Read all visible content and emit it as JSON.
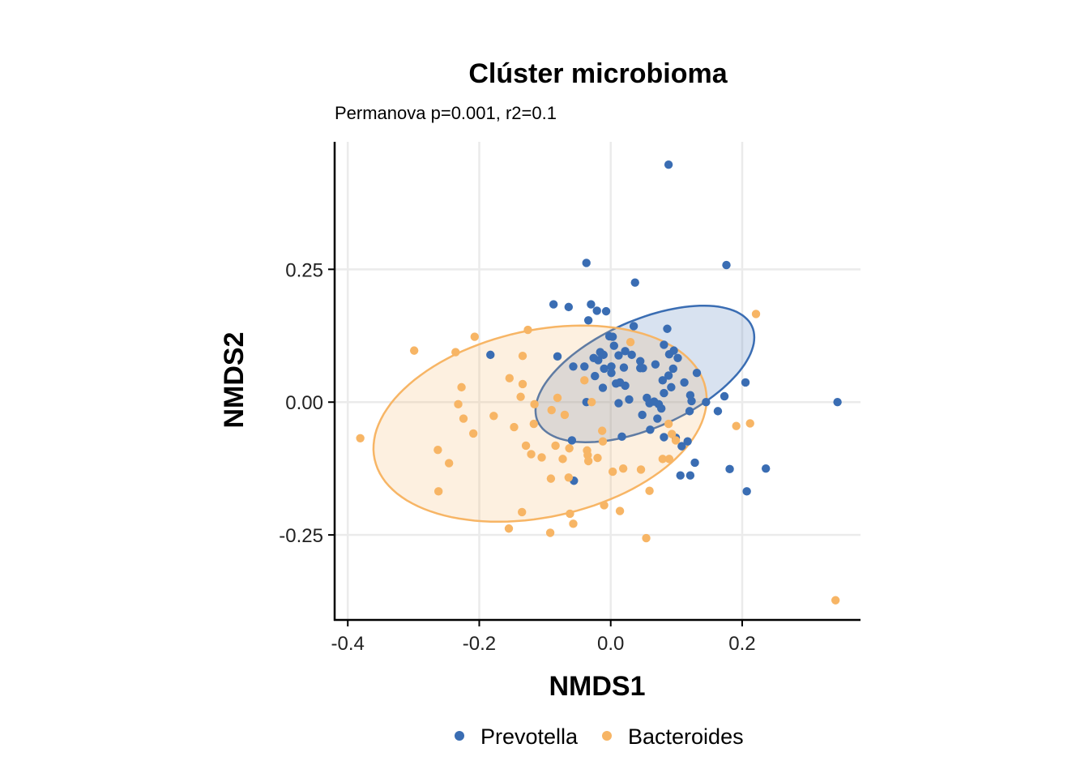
{
  "chart_data": {
    "type": "scatter",
    "title": "Clúster microbioma",
    "subtitle": "Permanova p=0.001, r2=0.1",
    "xlabel": "NMDS1",
    "ylabel": "NMDS2",
    "xlim": [
      -0.42,
      0.38
    ],
    "ylim": [
      -0.41,
      0.49
    ],
    "xticks": [
      -0.4,
      -0.2,
      0.0,
      0.2
    ],
    "xtick_labels": [
      "-0.4",
      "-0.2",
      "0.0",
      "0.2"
    ],
    "yticks": [
      -0.25,
      0.0,
      0.25
    ],
    "ytick_labels": [
      "-0.25",
      "0.00",
      "0.25"
    ],
    "grid": true,
    "legend_position": "bottom",
    "series": [
      {
        "name": "Prevotella",
        "color": "#3A6DB3",
        "ellipse": {
          "center": [
            0.052,
            0.053
          ],
          "semi_axes": [
            0.1867,
            0.0967
          ],
          "angle_deg": -32
        },
        "points": [
          [
            0.088,
            0.447
          ],
          [
            -0.037,
            0.262
          ],
          [
            0.176,
            0.258
          ],
          [
            0.037,
            0.225
          ],
          [
            -0.087,
            0.184
          ],
          [
            -0.064,
            0.179
          ],
          [
            -0.034,
            0.154
          ],
          [
            -0.03,
            0.184
          ],
          [
            -0.021,
            0.172
          ],
          [
            -0.007,
            0.171
          ],
          [
            0.035,
            0.143
          ],
          [
            -0.183,
            0.089
          ],
          [
            -0.081,
            0.086
          ],
          [
            -0.04,
            0.067
          ],
          [
            -0.026,
            0.083
          ],
          [
            -0.016,
            0.094
          ],
          [
            -0.011,
            0.089
          ],
          [
            -0.002,
            0.124
          ],
          [
            0.005,
            0.106
          ],
          [
            0.003,
            0.123
          ],
          [
            0.012,
            0.088
          ],
          [
            0.022,
            0.096
          ],
          [
            0.02,
            0.065
          ],
          [
            0.032,
            0.089
          ],
          [
            0.045,
            0.077
          ],
          [
            0.045,
            0.064
          ],
          [
            0.049,
            0.064
          ],
          [
            0.068,
            0.071
          ],
          [
            0.081,
            0.108
          ],
          [
            0.089,
            0.09
          ],
          [
            0.096,
            0.097
          ],
          [
            0.102,
            0.083
          ],
          [
            0.086,
            0.138
          ],
          [
            -0.057,
            0.067
          ],
          [
            -0.059,
            -0.072
          ],
          [
            -0.056,
            -0.148
          ],
          [
            -0.037,
            0.0
          ],
          [
            -0.024,
            0.049
          ],
          [
            -0.01,
            0.063
          ],
          [
            0.001,
            0.067
          ],
          [
            0.001,
            0.055
          ],
          [
            -0.012,
            0.027
          ],
          [
            -0.019,
            0.079
          ],
          [
            0.014,
            0.037
          ],
          [
            0.008,
            0.035
          ],
          [
            0.022,
            0.031
          ],
          [
            0.012,
            -0.002
          ],
          [
            0.028,
            0.005
          ],
          [
            0.055,
            0.008
          ],
          [
            0.048,
            -0.024
          ],
          [
            0.059,
            -0.002
          ],
          [
            0.066,
            0.001
          ],
          [
            0.073,
            -0.004
          ],
          [
            0.077,
            -0.012
          ],
          [
            0.079,
            0.041
          ],
          [
            0.088,
            0.05
          ],
          [
            0.095,
            0.063
          ],
          [
            0.112,
            0.037
          ],
          [
            0.131,
            0.055
          ],
          [
            0.081,
            0.017
          ],
          [
            0.092,
            0.028
          ],
          [
            0.121,
            0.013
          ],
          [
            0.123,
            0.002
          ],
          [
            0.145,
            0.0
          ],
          [
            0.12,
            -0.017
          ],
          [
            0.017,
            -0.065
          ],
          [
            0.06,
            -0.052
          ],
          [
            0.071,
            -0.031
          ],
          [
            0.081,
            -0.066
          ],
          [
            0.099,
            -0.067
          ],
          [
            0.117,
            -0.074
          ],
          [
            0.108,
            -0.083
          ],
          [
            0.106,
            -0.138
          ],
          [
            0.121,
            -0.138
          ],
          [
            0.128,
            -0.114
          ],
          [
            0.163,
            -0.017
          ],
          [
            0.173,
            0.011
          ],
          [
            0.181,
            -0.126
          ],
          [
            0.205,
            0.037
          ],
          [
            0.207,
            -0.168
          ],
          [
            0.236,
            -0.125
          ],
          [
            0.345,
            0.0
          ]
        ]
      },
      {
        "name": "Bacteroides",
        "color": "#F7B565",
        "ellipse": {
          "center": [
            -0.1075,
            -0.0405
          ],
          "semi_axes": [
            0.2613,
            0.1733
          ],
          "angle_deg": -19
        },
        "points": [
          [
            -0.381,
            -0.068
          ],
          [
            -0.299,
            0.097
          ],
          [
            -0.263,
            -0.09
          ],
          [
            -0.262,
            -0.168
          ],
          [
            -0.246,
            -0.115
          ],
          [
            -0.236,
            0.094
          ],
          [
            -0.232,
            -0.004
          ],
          [
            -0.227,
            0.028
          ],
          [
            -0.224,
            -0.031
          ],
          [
            -0.207,
            0.123
          ],
          [
            -0.209,
            -0.059
          ],
          [
            -0.178,
            -0.026
          ],
          [
            -0.154,
            0.045
          ],
          [
            -0.147,
            -0.047
          ],
          [
            -0.137,
            0.01
          ],
          [
            -0.134,
            0.034
          ],
          [
            -0.134,
            0.087
          ],
          [
            -0.135,
            -0.207
          ],
          [
            -0.129,
            -0.082
          ],
          [
            -0.121,
            -0.098
          ],
          [
            -0.116,
            -0.004
          ],
          [
            -0.117,
            -0.041
          ],
          [
            -0.105,
            -0.104
          ],
          [
            -0.091,
            -0.144
          ],
          [
            -0.09,
            -0.015
          ],
          [
            -0.092,
            -0.246
          ],
          [
            -0.084,
            -0.082
          ],
          [
            -0.081,
            0.008
          ],
          [
            -0.073,
            -0.107
          ],
          [
            -0.07,
            -0.024
          ],
          [
            -0.064,
            -0.142
          ],
          [
            -0.063,
            -0.087
          ],
          [
            -0.062,
            -0.21
          ],
          [
            -0.057,
            -0.229
          ],
          [
            -0.04,
            0.041
          ],
          [
            -0.036,
            -0.091
          ],
          [
            -0.035,
            -0.1
          ],
          [
            -0.034,
            -0.111
          ],
          [
            -0.029,
            0.0
          ],
          [
            -0.02,
            -0.105
          ],
          [
            -0.012,
            -0.074
          ],
          [
            -0.013,
            -0.054
          ],
          [
            -0.01,
            -0.194
          ],
          [
            0.003,
            -0.131
          ],
          [
            0.019,
            -0.125
          ],
          [
            0.014,
            -0.205
          ],
          [
            0.03,
            0.113
          ],
          [
            0.046,
            -0.127
          ],
          [
            0.054,
            -0.256
          ],
          [
            0.059,
            -0.167
          ],
          [
            0.079,
            -0.107
          ],
          [
            0.089,
            -0.107
          ],
          [
            0.088,
            -0.041
          ],
          [
            0.093,
            -0.06
          ],
          [
            0.099,
            -0.072
          ],
          [
            0.191,
            -0.045
          ],
          [
            0.212,
            -0.04
          ],
          [
            0.221,
            0.166
          ],
          [
            0.342,
            -0.373
          ],
          [
            -0.126,
            0.136
          ],
          [
            -0.155,
            -0.238
          ]
        ]
      }
    ]
  }
}
